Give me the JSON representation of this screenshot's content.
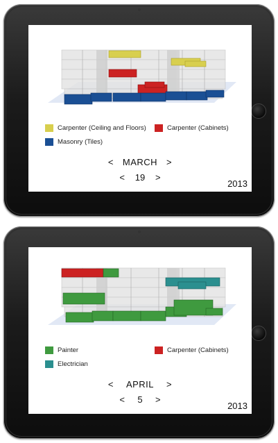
{
  "panels": [
    {
      "legend": [
        {
          "label": "Carpenter (Ceiling and Floors)",
          "color": "#d8cf4e"
        },
        {
          "label": "Carpenter (Cabinets)",
          "color": "#cc2222"
        },
        {
          "label": "Masonry (Tiles)",
          "color": "#1a4f94"
        }
      ],
      "month": "MARCH",
      "day": "19",
      "year": "2013",
      "prev_arrow": "<",
      "next_arrow": ">"
    },
    {
      "legend": [
        {
          "label": "Painter",
          "color": "#3f9a3f"
        },
        {
          "label": "Carpenter (Cabinets)",
          "color": "#cc2222"
        },
        {
          "label": "Electrician",
          "color": "#2b8f8f"
        }
      ],
      "month": "APRIL",
      "day": "5",
      "year": "2013",
      "prev_arrow": "<",
      "next_arrow": ">"
    }
  ]
}
